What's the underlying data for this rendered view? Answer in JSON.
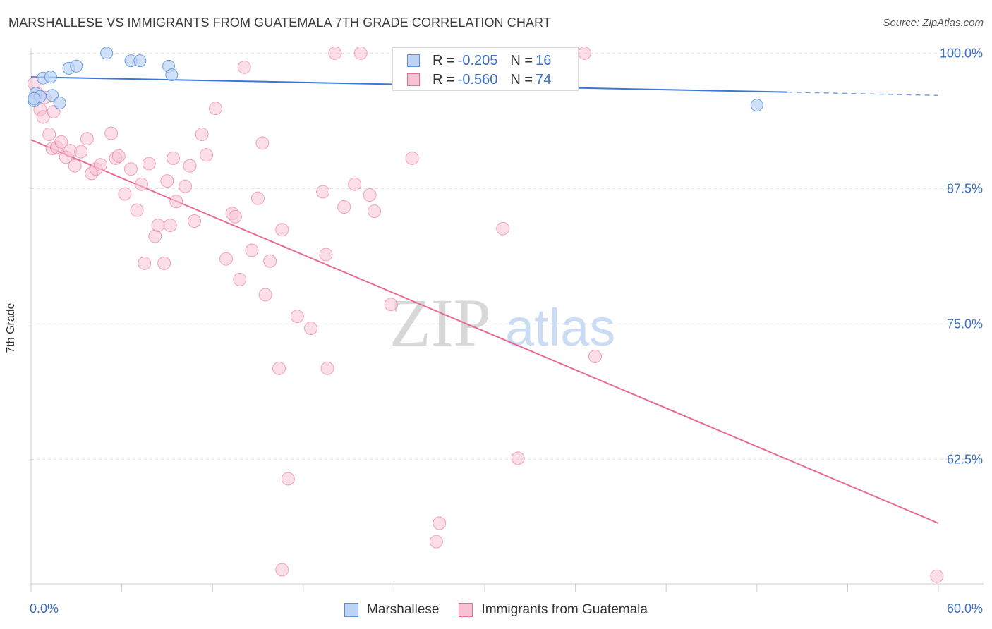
{
  "header": {
    "title": "MARSHALLESE VS IMMIGRANTS FROM GUATEMALA 7TH GRADE CORRELATION CHART",
    "source": "Source: ZipAtlas.com"
  },
  "colors": {
    "series_blue": "#5b8fd9",
    "series_blue_fill": "#bcd3f5",
    "series_pink": "#e86a97",
    "series_pink_fill": "#f7c3d4",
    "axis_value_text": "#3a6fc4"
  },
  "stats": {
    "rows": [
      {
        "r_label": "R =",
        "r_value": "-0.205",
        "n_label": "N =",
        "n_value": "16"
      },
      {
        "r_label": "R =",
        "r_value": "-0.560",
        "n_label": "N =",
        "n_value": "74"
      }
    ]
  },
  "legend": {
    "items": [
      {
        "label": "Marshallese"
      },
      {
        "label": "Immigrants from Guatemala"
      }
    ]
  },
  "watermark": {
    "zip": "ZIP",
    "atlas": "atlas"
  },
  "chart_data": {
    "type": "scatter",
    "title": "MARSHALLESE VS IMMIGRANTS FROM GUATEMALA 7TH GRADE CORRELATION CHART",
    "xlabel": "",
    "ylabel": "7th Grade",
    "xlim": [
      0,
      60
    ],
    "ylim": [
      51,
      101
    ],
    "x_tick_labels": [
      "0.0%",
      "60.0%"
    ],
    "y_ticks": [
      62.5,
      75.0,
      87.5,
      100.0
    ],
    "y_tick_labels": [
      "62.5%",
      "75.0%",
      "87.5%",
      "100.0%"
    ],
    "grid": true,
    "series": [
      {
        "name": "Marshallese",
        "r": -0.205,
        "n": 16,
        "points": [
          [
            0.2,
            95.6
          ],
          [
            0.3,
            96.3
          ],
          [
            0.6,
            96.0
          ],
          [
            0.8,
            97.7
          ],
          [
            1.3,
            97.8
          ],
          [
            1.4,
            96.1
          ],
          [
            1.9,
            95.4
          ],
          [
            2.5,
            98.6
          ],
          [
            3.0,
            98.8
          ],
          [
            5.0,
            100.0
          ],
          [
            6.6,
            99.3
          ],
          [
            7.2,
            99.3
          ],
          [
            9.1,
            98.8
          ],
          [
            9.3,
            98.0
          ],
          [
            48.0,
            95.2
          ],
          [
            0.2,
            95.8
          ]
        ],
        "trend": {
          "x0": 0,
          "y0": 97.8,
          "x1": 50,
          "y1": 96.4,
          "dash_to_x": 60,
          "dash_to_y": 96.1
        }
      },
      {
        "name": "Immigrants from Guatemala",
        "r": -0.56,
        "n": 74,
        "points": [
          [
            0.2,
            97.2
          ],
          [
            0.4,
            96.3
          ],
          [
            0.6,
            94.8
          ],
          [
            0.8,
            94.1
          ],
          [
            1.2,
            92.5
          ],
          [
            1.4,
            91.2
          ],
          [
            1.7,
            91.3
          ],
          [
            2.0,
            91.8
          ],
          [
            2.3,
            90.4
          ],
          [
            2.6,
            91.0
          ],
          [
            2.9,
            89.6
          ],
          [
            3.3,
            90.9
          ],
          [
            3.7,
            92.1
          ],
          [
            4.0,
            88.9
          ],
          [
            4.3,
            89.3
          ],
          [
            4.6,
            89.7
          ],
          [
            5.3,
            92.6
          ],
          [
            5.6,
            90.3
          ],
          [
            5.8,
            90.5
          ],
          [
            6.2,
            87.0
          ],
          [
            6.6,
            89.3
          ],
          [
            7.0,
            85.5
          ],
          [
            7.3,
            87.9
          ],
          [
            7.5,
            80.6
          ],
          [
            7.8,
            89.8
          ],
          [
            8.2,
            83.1
          ],
          [
            8.4,
            84.1
          ],
          [
            8.8,
            80.6
          ],
          [
            9.0,
            88.2
          ],
          [
            9.2,
            84.1
          ],
          [
            9.4,
            90.3
          ],
          [
            9.6,
            86.3
          ],
          [
            10.2,
            87.7
          ],
          [
            10.5,
            89.6
          ],
          [
            10.8,
            84.5
          ],
          [
            11.3,
            92.5
          ],
          [
            11.6,
            90.6
          ],
          [
            12.2,
            94.9
          ],
          [
            12.9,
            81.0
          ],
          [
            13.3,
            85.2
          ],
          [
            13.5,
            84.9
          ],
          [
            13.8,
            79.1
          ],
          [
            14.1,
            98.7
          ],
          [
            14.6,
            81.8
          ],
          [
            15.0,
            86.6
          ],
          [
            15.3,
            91.7
          ],
          [
            15.5,
            77.7
          ],
          [
            15.8,
            80.8
          ],
          [
            16.4,
            70.9
          ],
          [
            16.6,
            83.7
          ],
          [
            17.0,
            60.7
          ],
          [
            17.6,
            75.7
          ],
          [
            18.5,
            74.6
          ],
          [
            19.3,
            87.2
          ],
          [
            19.5,
            81.4
          ],
          [
            19.6,
            70.9
          ],
          [
            20.1,
            100.0
          ],
          [
            20.7,
            85.8
          ],
          [
            21.4,
            87.9
          ],
          [
            21.8,
            100.0
          ],
          [
            22.4,
            86.9
          ],
          [
            22.7,
            85.4
          ],
          [
            23.8,
            76.8
          ],
          [
            25.2,
            90.3
          ],
          [
            26.8,
            54.9
          ],
          [
            27.0,
            56.6
          ],
          [
            31.2,
            83.8
          ],
          [
            32.2,
            62.6
          ],
          [
            36.6,
            100.0
          ],
          [
            37.3,
            72.0
          ],
          [
            16.6,
            52.3
          ],
          [
            59.9,
            51.7
          ],
          [
            0.9,
            95.9
          ],
          [
            1.5,
            94.6
          ]
        ],
        "trend": {
          "x0": 0,
          "y0": 92.0,
          "x1": 60,
          "y1": 56.6
        }
      }
    ]
  }
}
